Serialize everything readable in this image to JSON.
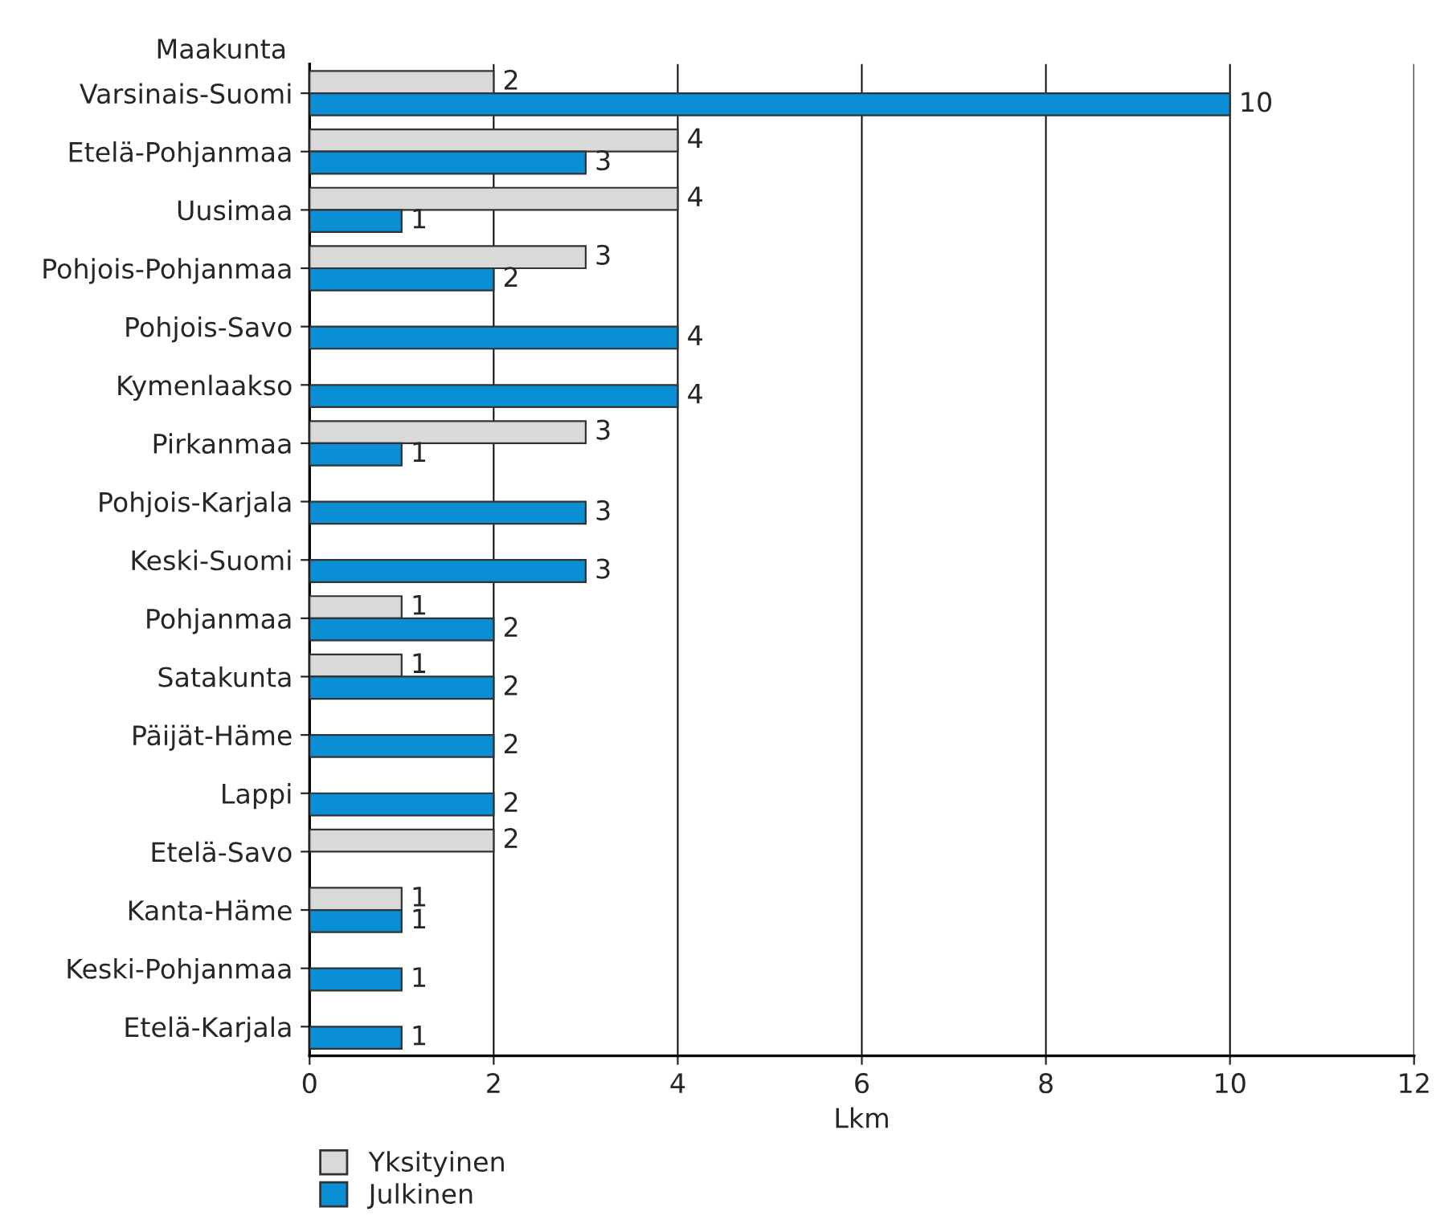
{
  "chart_data": {
    "type": "bar",
    "orientation": "horizontal",
    "ylabel": "Maakunta",
    "xlabel": "Lkm",
    "categories": [
      "Varsinais-Suomi",
      "Etelä-Pohjanmaa",
      "Uusimaa",
      "Pohjois-Pohjanmaa",
      "Pohjois-Savo",
      "Kymenlaakso",
      "Pirkanmaa",
      "Pohjois-Karjala",
      "Keski-Suomi",
      "Pohjanmaa",
      "Satakunta",
      "Päijät-Häme",
      "Lappi",
      "Etelä-Savo",
      "Kanta-Häme",
      "Keski-Pohjanmaa",
      "Etelä-Karjala"
    ],
    "series": [
      {
        "name": "Yksityinen",
        "color": "#d9d9d9",
        "values": [
          2,
          4,
          4,
          3,
          null,
          null,
          3,
          null,
          null,
          1,
          1,
          null,
          null,
          2,
          1,
          null,
          null
        ]
      },
      {
        "name": "Julkinen",
        "color": "#0a8ed4",
        "values": [
          10,
          3,
          1,
          2,
          4,
          4,
          1,
          3,
          3,
          2,
          2,
          2,
          2,
          null,
          1,
          1,
          1
        ]
      }
    ],
    "xlim": [
      0,
      12
    ],
    "xticks": [
      0,
      2,
      4,
      6,
      8,
      10,
      12
    ],
    "grid": "x",
    "legend": "bottom",
    "data_labels": true
  }
}
